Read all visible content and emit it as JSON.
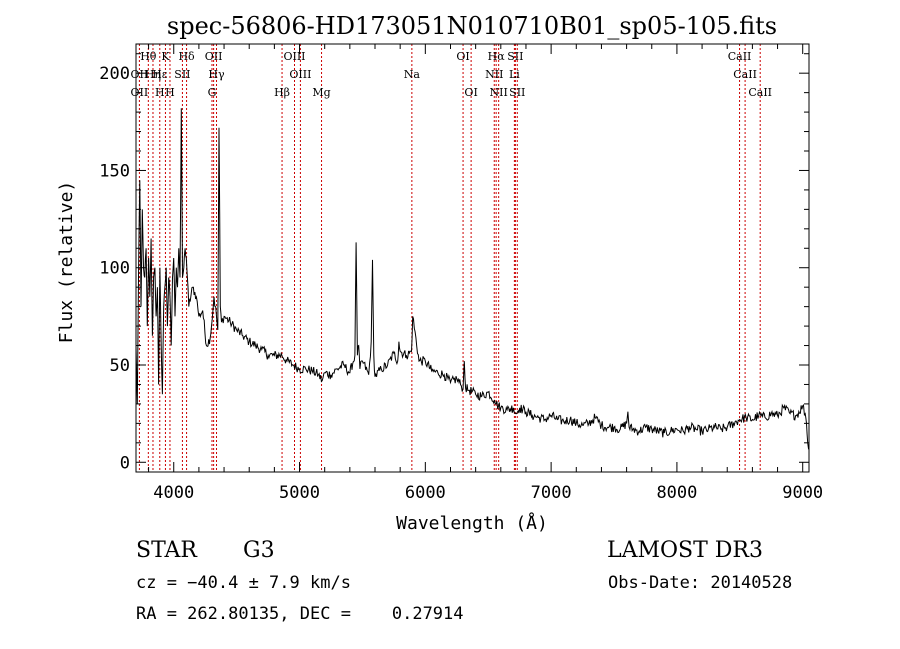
{
  "chart_data": {
    "type": "line",
    "title": "spec-56806-HD173051N010710B01_sp05-105.fits",
    "xlabel": "Wavelength (Å)",
    "ylabel": "Flux (relative)",
    "xlim": [
      3700,
      9050
    ],
    "ylim": [
      -5,
      215
    ],
    "xticks": [
      4000,
      5000,
      6000,
      7000,
      8000,
      9000
    ],
    "yticks": [
      0,
      50,
      100,
      150,
      200
    ],
    "grid": false,
    "spectrum": {
      "name": "flux",
      "x": [
        3700,
        3710,
        3720,
        3730,
        3740,
        3750,
        3760,
        3770,
        3780,
        3790,
        3800,
        3810,
        3820,
        3830,
        3840,
        3850,
        3860,
        3870,
        3880,
        3890,
        3900,
        3910,
        3920,
        3930,
        3940,
        3950,
        3960,
        3970,
        3980,
        3990,
        4000,
        4010,
        4020,
        4030,
        4040,
        4050,
        4060,
        4070,
        4080,
        4090,
        4100,
        4120,
        4150,
        4180,
        4200,
        4230,
        4260,
        4290,
        4300,
        4320,
        4340,
        4350,
        4360,
        4370,
        4380,
        4400,
        4450,
        4500,
        4550,
        4600,
        4650,
        4700,
        4750,
        4800,
        4860,
        4900,
        4950,
        5000,
        5050,
        5100,
        5150,
        5180,
        5200,
        5250,
        5300,
        5350,
        5400,
        5440,
        5450,
        5460,
        5470,
        5480,
        5500,
        5550,
        5570,
        5580,
        5590,
        5600,
        5650,
        5700,
        5750,
        5780,
        5790,
        5800,
        5850,
        5890,
        5900,
        5950,
        6000,
        6050,
        6100,
        6150,
        6200,
        6250,
        6280,
        6300,
        6310,
        6320,
        6350,
        6400,
        6450,
        6500,
        6550,
        6563,
        6600,
        6650,
        6700,
        6720,
        6750,
        6800,
        6850,
        6900,
        6950,
        7000,
        7050,
        7100,
        7150,
        7200,
        7250,
        7300,
        7350,
        7400,
        7450,
        7500,
        7550,
        7600,
        7610,
        7620,
        7650,
        7700,
        7750,
        7800,
        7850,
        7900,
        7950,
        8000,
        8050,
        8100,
        8150,
        8200,
        8250,
        8300,
        8350,
        8400,
        8450,
        8500,
        8550,
        8600,
        8650,
        8700,
        8750,
        8800,
        8850,
        8900,
        8950,
        9000,
        9020,
        9030,
        9040,
        9050
      ],
      "y": [
        60,
        30,
        95,
        145,
        80,
        130,
        100,
        95,
        110,
        70,
        105,
        85,
        115,
        65,
        95,
        100,
        75,
        90,
        40,
        100,
        60,
        35,
        80,
        90,
        100,
        70,
        95,
        85,
        60,
        95,
        105,
        75,
        100,
        90,
        110,
        95,
        182,
        95,
        100,
        110,
        105,
        80,
        90,
        85,
        75,
        78,
        60,
        64,
        70,
        85,
        75,
        68,
        172,
        80,
        72,
        75,
        72,
        68,
        65,
        62,
        60,
        58,
        55,
        55,
        55,
        52,
        50,
        48,
        48,
        47,
        45,
        42,
        46,
        45,
        48,
        50,
        46,
        55,
        113,
        55,
        60,
        48,
        52,
        45,
        62,
        104,
        55,
        44,
        48,
        50,
        56,
        52,
        62,
        57,
        55,
        57,
        75,
        52,
        52,
        47,
        46,
        45,
        41,
        43,
        40,
        38,
        52,
        38,
        37,
        35,
        34,
        36,
        32,
        30,
        28,
        27,
        28,
        25,
        28,
        26,
        24,
        23,
        22,
        24,
        22,
        21,
        22,
        20,
        19,
        20,
        23,
        19,
        18,
        18,
        17,
        20,
        26,
        18,
        17,
        16,
        18,
        17,
        16,
        15,
        16,
        17,
        16,
        18,
        17,
        16,
        17,
        18,
        17,
        18,
        20,
        22,
        23,
        22,
        24,
        23,
        25,
        24,
        28,
        25,
        24,
        29,
        25,
        20,
        10,
        8
      ],
      "noise_amplitude": 2.5
    },
    "lines": [
      {
        "label": "Hθ",
        "wl": 3798,
        "row": 0
      },
      {
        "label": "OII",
        "wl": 3727,
        "row": 1
      },
      {
        "label": "OII",
        "wl": 3727,
        "row": 2
      },
      {
        "label": "Hη",
        "wl": 3835,
        "row": 1
      },
      {
        "label": "Hε",
        "wl": 3889,
        "row": 1
      },
      {
        "label": "H",
        "wl": 3889,
        "row": 2
      },
      {
        "label": "K",
        "wl": 3934,
        "row": 0
      },
      {
        "label": "SII",
        "wl": 4069,
        "row": 1
      },
      {
        "label": "H",
        "wl": 3970,
        "row": 2
      },
      {
        "label": "Hδ",
        "wl": 4102,
        "row": 0
      },
      {
        "label": "OII",
        "wl": 4317,
        "row": 0
      },
      {
        "label": "Hγ",
        "wl": 4340,
        "row": 1
      },
      {
        "label": "G",
        "wl": 4304,
        "row": 2
      },
      {
        "label": "OIII",
        "wl": 4960,
        "row": 0
      },
      {
        "label": "OIII",
        "wl": 5007,
        "row": 1
      },
      {
        "label": "Hβ",
        "wl": 4861,
        "row": 2
      },
      {
        "label": "Mg",
        "wl": 5175,
        "row": 2
      },
      {
        "label": "Na",
        "wl": 5893,
        "row": 1
      },
      {
        "label": "OI",
        "wl": 6300,
        "row": 0
      },
      {
        "label": "OI",
        "wl": 6364,
        "row": 2
      },
      {
        "label": "Hα",
        "wl": 6563,
        "row": 0
      },
      {
        "label": "NII",
        "wl": 6548,
        "row": 1
      },
      {
        "label": "NII",
        "wl": 6583,
        "row": 2
      },
      {
        "label": "SII",
        "wl": 6716,
        "row": 0
      },
      {
        "label": "Li",
        "wl": 6708,
        "row": 1
      },
      {
        "label": "SII",
        "wl": 6731,
        "row": 2
      },
      {
        "label": "CaII",
        "wl": 8498,
        "row": 0
      },
      {
        "label": "CaII",
        "wl": 8542,
        "row": 1
      },
      {
        "label": "CaII",
        "wl": 8662,
        "row": 2
      }
    ]
  },
  "info": {
    "object_class": "STAR",
    "subclass": "G3",
    "survey": "LAMOST DR3",
    "redshift": "cz = −40.4 ± 7.9 km/s",
    "obs_date": "Obs-Date: 20140528",
    "coords": "RA = 262.80135, DEC =    0.27914"
  },
  "colors": {
    "spectrum": "#000000",
    "line_markers": "#cc0000",
    "axes": "#000000"
  }
}
